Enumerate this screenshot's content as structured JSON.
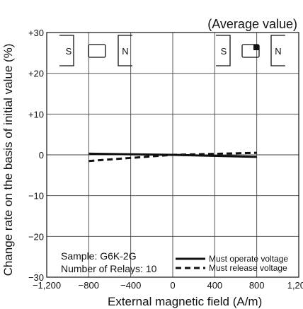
{
  "chart_data": {
    "type": "line",
    "note": "(Average value)",
    "xlabel": "External magnetic field (A/m)",
    "ylabel": "Change rate on the basis of initial value (%)",
    "xlim": [
      -1200,
      1200
    ],
    "ylim": [
      -30,
      30
    ],
    "x_ticks": [
      {
        "value": -1200,
        "label": "−1,200"
      },
      {
        "value": -800,
        "label": "−800"
      },
      {
        "value": -400,
        "label": "−400"
      },
      {
        "value": 0,
        "label": "0"
      },
      {
        "value": 400,
        "label": "400"
      },
      {
        "value": 800,
        "label": "800"
      },
      {
        "value": 1200,
        "label": "1,200"
      }
    ],
    "y_ticks": [
      {
        "value": 30,
        "label": "+30"
      },
      {
        "value": 20,
        "label": "+20"
      },
      {
        "value": 10,
        "label": "+10"
      },
      {
        "value": 0,
        "label": "0"
      },
      {
        "value": -10,
        "label": "−10"
      },
      {
        "value": -20,
        "label": "−20"
      },
      {
        "value": -30,
        "label": "−30"
      }
    ],
    "grid": true,
    "series": [
      {
        "name": "Must operate voltage",
        "style": "solid",
        "x": [
          -800,
          0,
          800
        ],
        "y": [
          0.3,
          0.0,
          -0.5
        ]
      },
      {
        "name": "Must release voltage",
        "style": "dashed",
        "x": [
          -800,
          0,
          800
        ],
        "y": [
          -1.5,
          0.0,
          0.5
        ]
      }
    ],
    "sample_lines": [
      "Sample: G6K-2G",
      "Number of Relays: 10"
    ],
    "magnet_left": {
      "pole1": "S",
      "pole2": "N"
    },
    "magnet_right": {
      "pole1": "S",
      "pole2": "N"
    },
    "line_color": "#111111"
  }
}
